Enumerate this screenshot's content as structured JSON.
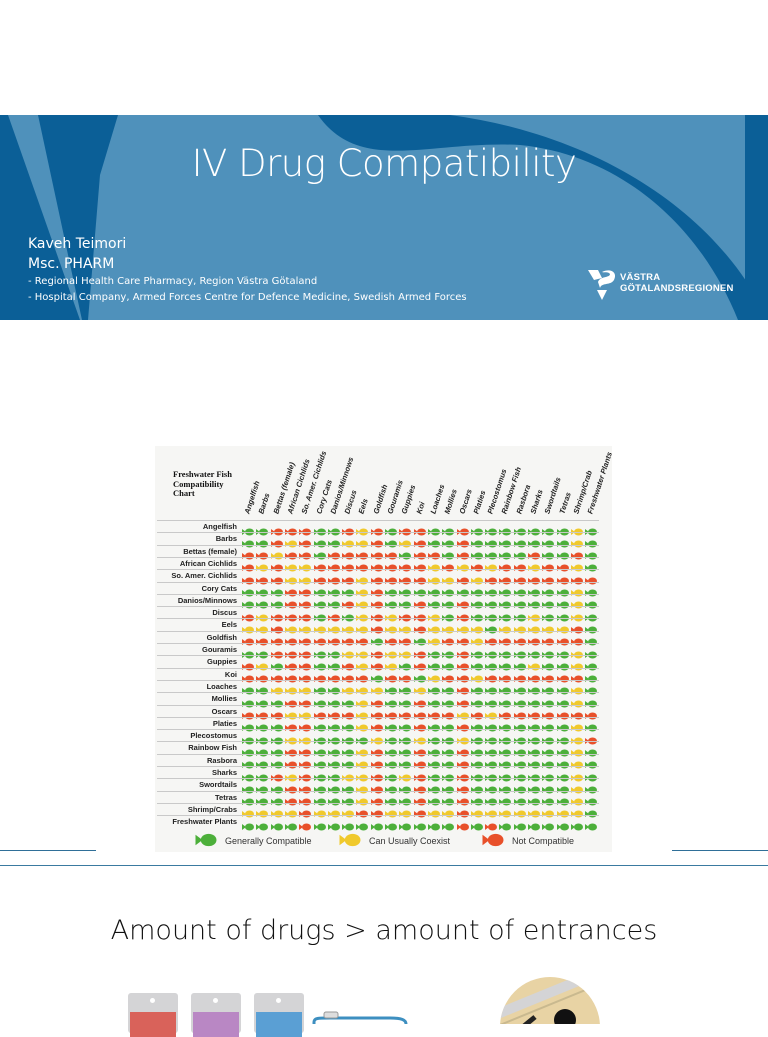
{
  "banner": {
    "title": "IV Drug Compatibility",
    "author_name": "Kaveh Teimori",
    "author_degree": "Msc. PHARM",
    "affiliation_1": "- Regional Health Care Pharmacy, Region Västra Götaland",
    "affiliation_2": "- Hospital Company, Armed Forces Centre for Defence Medicine, Swedish Armed Forces",
    "logo_line_1": "VÄSTRA",
    "logo_line_2": "GÖTALANDSREGIONEN",
    "colors": {
      "dark_blue": "#0b5f97",
      "light_blue": "#4f91bb"
    }
  },
  "chart_data": {
    "type": "table",
    "title": "Freshwater Fish Compatibility Chart",
    "columns": [
      "Angelfish",
      "Barbs",
      "Bettas (female)",
      "African Cichlids",
      "So. Amer. Cichlids",
      "Cory Cats",
      "Danios/Minnows",
      "Discus",
      "Eels",
      "Goldfish",
      "Gouramis",
      "Guppies",
      "Koi",
      "Loaches",
      "Mollies",
      "Oscars",
      "Platies",
      "Plecostomus",
      "Rainbow Fish",
      "Rasbora",
      "Sharks",
      "Swordtails",
      "Tetras",
      "Shrimp/Crab",
      "Freshwater Plants"
    ],
    "rows": [
      {
        "label": "Angelfish",
        "values": "GGRRRGGRYRGRRGGRGGGGGGGYG"
      },
      {
        "label": "Barbs",
        "values": "GGRYRGGYYRGYRGGRGGGGGGGYG"
      },
      {
        "label": "Bettas (female)",
        "values": "RRYRRGRRRRRGRRGRGGGGRGGRG"
      },
      {
        "label": "African Cichlids",
        "values": "RYRYYRRRRRRRRYRYRYRRYRRYG"
      },
      {
        "label": "So. Amer. Cichlids",
        "values": "RRRYYRRRYRRRRYYRYRRRRRRRR"
      },
      {
        "label": "Cory Cats",
        "values": "GGGRRGGGYRGGGGGGGGGGGGGYG"
      },
      {
        "label": "Danios/Minnows",
        "values": "GGGRRGGRYRGGRGGRGGGGGGGYG"
      },
      {
        "label": "Discus",
        "values": "RYRRRGRGYRYRRYGRGGGGYGGYG"
      },
      {
        "label": "Eels",
        "values": "YYRYYYYYYRYYRYYYYGYYYYYRG"
      },
      {
        "label": "Goldfish",
        "values": "RRRRRRRRRGRRGYRRYRRRRRRRG"
      },
      {
        "label": "Gouramis",
        "values": "GGRRRGGYYRYYRGGRGGGGGGGYG"
      },
      {
        "label": "Guppies",
        "values": "RYGRRGGRYRYGRGGRGGGGYGGYG"
      },
      {
        "label": "Koi",
        "values": "RRRRRRRRRGRRGYRRYRRRRRRRG"
      },
      {
        "label": "Loaches",
        "values": "GGYYYGGYYYGGYGGRGGGGGGGYG"
      },
      {
        "label": "Mollies",
        "values": "GGGRRGGGYRGGRGGRGGGGGGGYG"
      },
      {
        "label": "Oscars",
        "values": "RRRYYRRRYRRRRRRYRYRRRRRRR"
      },
      {
        "label": "Platies",
        "values": "GGGRRGGGYRGGRGGRGGGGGGGYG"
      },
      {
        "label": "Plecostomus",
        "values": "GGGYYGGGGYGGYGGYGGGGGGGYR"
      },
      {
        "label": "Rainbow Fish",
        "values": "GGGRRGGGYRGGRGGRGGGGGGGYG"
      },
      {
        "label": "Rasbora",
        "values": "GGGRRGGGYRGGRGGRGGGGGGGYG"
      },
      {
        "label": "Sharks",
        "values": "GGRYRGGYYRGYRGGRGGGGGGGYG"
      },
      {
        "label": "Swordtails",
        "values": "GGGRRGGGYRGGRGGRGGGGGGGYG"
      },
      {
        "label": "Tetras",
        "values": "GGGRRGGGYRGGRGGRGGGGGGGYG"
      },
      {
        "label": "Shrimp/Crabs",
        "values": "YYYYRYYYRRYYRYYRYYYYYYYYG"
      },
      {
        "label": "Freshwater Plants",
        "values": "GGGGRGGGGGGGGGGRGRGGGGGGG"
      }
    ],
    "legend": [
      {
        "key": "G",
        "label": "Generally Compatible",
        "color": "#4caf3a"
      },
      {
        "key": "Y",
        "label": "Can Usually Coexist",
        "color": "#f0c92c"
      },
      {
        "key": "R",
        "label": "Not Compatible",
        "color": "#e8502a"
      }
    ]
  },
  "subheading": "Amount of drugs > amount of entrances",
  "illustration": {
    "bag_colors": [
      "#d9625a",
      "#b987c4",
      "#5a9fd4"
    ],
    "tube_color": "#3d8fc0",
    "circle_color": "#e8d3a4"
  }
}
